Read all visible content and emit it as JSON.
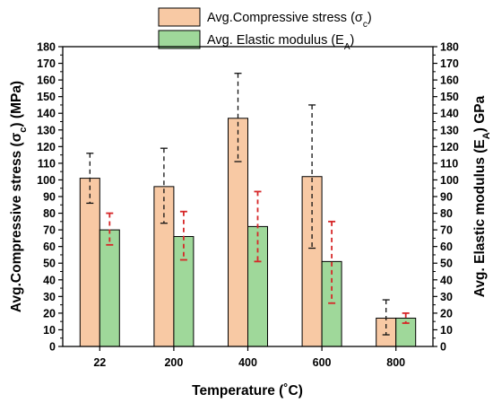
{
  "chart_data": {
    "type": "bar",
    "xlabel": "Temperature (˚C)",
    "ylabel_left": {
      "main": "Avg.Compressive stress (σ",
      "sub": "c",
      "tail": ") (MPa)"
    },
    "ylabel_right": {
      "main": "Avg. Elastic modulus (E",
      "sub": "A",
      "tail": ") GPa"
    },
    "categories": [
      "22",
      "200",
      "400",
      "600",
      "800"
    ],
    "ylim": [
      0,
      180
    ],
    "yticks": [
      "0",
      "10",
      "20",
      "30",
      "40",
      "50",
      "60",
      "70",
      "80",
      "90",
      "100",
      "110",
      "120",
      "130",
      "140",
      "150",
      "160",
      "170",
      "180"
    ],
    "grid": false,
    "legend_position": "top",
    "series": [
      {
        "name": {
          "main": "Avg.Compressive stress (σ",
          "sub": "c",
          "tail": ")"
        },
        "values": [
          101,
          96,
          137,
          102,
          17
        ],
        "error_low": [
          86,
          74,
          111,
          59,
          7
        ],
        "error_high": [
          116,
          119,
          164,
          145,
          28
        ],
        "color": "#f8c9a4",
        "error_color": "#111111"
      },
      {
        "name": {
          "main": "Avg. Elastic modulus (E",
          "sub": "A",
          "tail": ")"
        },
        "values": [
          70,
          66,
          72,
          51,
          17
        ],
        "error_low": [
          61,
          52,
          51,
          26,
          14
        ],
        "error_high": [
          80,
          81,
          93,
          75,
          20
        ],
        "color": "#9fd89a",
        "error_color": "#d62728"
      }
    ]
  }
}
